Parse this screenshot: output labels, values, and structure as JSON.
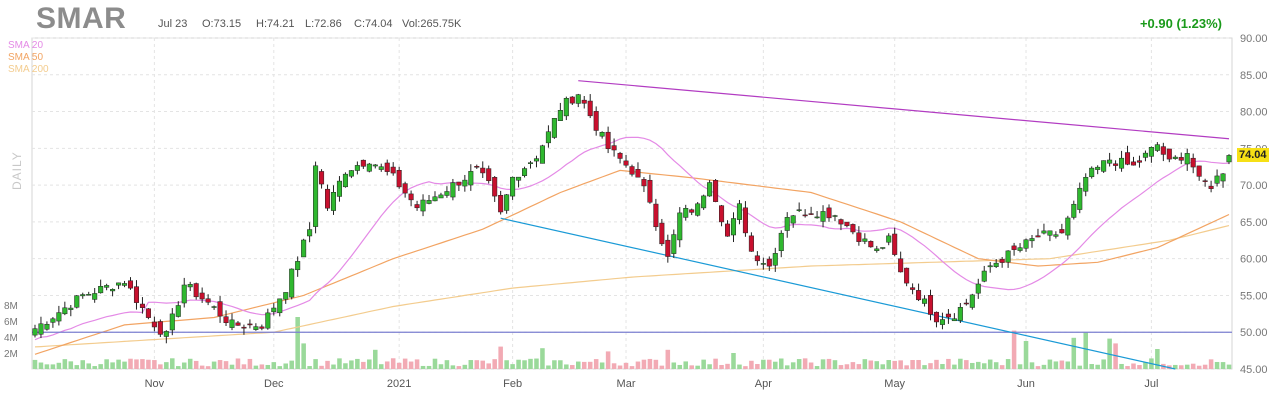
{
  "header": {
    "ticker": "SMAR",
    "date": "Jul 23",
    "open": "O:73.15",
    "high": "H:74.21",
    "low": "L:72.86",
    "close": "C:74.04",
    "volume": "Vol:265.75K",
    "change": "+0.90 (1.23%)",
    "period": "DAILY",
    "last_price": "74.04"
  },
  "colors": {
    "up": "#2fb82f",
    "down": "#c8102e",
    "sma20": "#e48ae6",
    "sma50": "#f2a463",
    "sma200": "#f3cc8e",
    "resistance": "#b23cc2",
    "support": "#1a9ad6",
    "hline": "#7b7fd1",
    "vol_up": "#9ad99a",
    "vol_down": "#f2aab4",
    "grid": "#e4e4e4"
  },
  "chart_data": {
    "type": "candlestick",
    "price_ylim": [
      45,
      90
    ],
    "price_ticks": [
      "90.00",
      "85.00",
      "80.00",
      "75.00",
      "70.00",
      "65.00",
      "60.00",
      "55.00",
      "50.00",
      "45.00"
    ],
    "volume_ticks": [
      "8M",
      "6M",
      "4M",
      "2M"
    ],
    "x_tick_labels": [
      "Nov",
      "Dec",
      "2021",
      "Feb",
      "Mar",
      "Apr",
      "May",
      "Jun",
      "Jul"
    ],
    "x_tick_bars": [
      20,
      40,
      61,
      80,
      99,
      122,
      144,
      166,
      187
    ],
    "legend": [
      "SMA 20",
      "SMA 50",
      "SMA 200"
    ],
    "hline": 50.0,
    "resistance_line": {
      "from": [
        91,
        84.2
      ],
      "to": [
        200,
        76.3
      ]
    },
    "support_line": {
      "from": [
        78,
        65.5
      ],
      "to": [
        191,
        45.0
      ]
    },
    "anchor_closes": [
      [
        0,
        50.5
      ],
      [
        8,
        55.0
      ],
      [
        15,
        57.0
      ],
      [
        19,
        52.0
      ],
      [
        22,
        49.5
      ],
      [
        25,
        56.5
      ],
      [
        29,
        54.0
      ],
      [
        33,
        51.0
      ],
      [
        38,
        51.0
      ],
      [
        42,
        56.0
      ],
      [
        46,
        64.0
      ],
      [
        47,
        73.0
      ],
      [
        49,
        67.0
      ],
      [
        52,
        72.0
      ],
      [
        56,
        73.5
      ],
      [
        60,
        71.0
      ],
      [
        64,
        67.0
      ],
      [
        68,
        69.0
      ],
      [
        74,
        72.0
      ],
      [
        76,
        70.0
      ],
      [
        78,
        66.0
      ],
      [
        80,
        71.0
      ],
      [
        84,
        74.0
      ],
      [
        86,
        77.0
      ],
      [
        88,
        80.5
      ],
      [
        91,
        82.5
      ],
      [
        94,
        78.0
      ],
      [
        96,
        75.0
      ],
      [
        100,
        72.0
      ],
      [
        103,
        68.0
      ],
      [
        104,
        65.0
      ],
      [
        106,
        60.0
      ],
      [
        108,
        66.0
      ],
      [
        111,
        67.0
      ],
      [
        113,
        71.0
      ],
      [
        116,
        63.0
      ],
      [
        118,
        67.0
      ],
      [
        120,
        61.0
      ],
      [
        123,
        59.0
      ],
      [
        126,
        66.0
      ],
      [
        130,
        66.5
      ],
      [
        134,
        66.0
      ],
      [
        138,
        63.0
      ],
      [
        141,
        61.0
      ],
      [
        143,
        62.5
      ],
      [
        145,
        58.0
      ],
      [
        148,
        55.0
      ],
      [
        151,
        52.0
      ],
      [
        154,
        52.5
      ],
      [
        156,
        54.0
      ],
      [
        160,
        59.0
      ],
      [
        163,
        60.5
      ],
      [
        166,
        62.0
      ],
      [
        168,
        63.0
      ],
      [
        172,
        63.5
      ],
      [
        174,
        67.0
      ],
      [
        176,
        71.0
      ],
      [
        180,
        73.5
      ],
      [
        184,
        72.5
      ],
      [
        186,
        74.0
      ],
      [
        188,
        75.5
      ],
      [
        190,
        73.0
      ],
      [
        193,
        74.5
      ],
      [
        195,
        70.5
      ],
      [
        197,
        70.0
      ],
      [
        199,
        72.0
      ],
      [
        200,
        74.04
      ]
    ],
    "volume_spikes": [
      [
        44,
        6.5
      ],
      [
        45,
        3.2
      ],
      [
        57,
        2.4
      ],
      [
        78,
        2.8
      ],
      [
        85,
        2.6
      ],
      [
        96,
        2.2
      ],
      [
        106,
        2.4
      ],
      [
        117,
        2.0
      ],
      [
        164,
        4.8
      ],
      [
        166,
        3.5
      ],
      [
        174,
        3.9
      ],
      [
        176,
        4.6
      ],
      [
        180,
        3.8
      ],
      [
        181,
        3.2
      ],
      [
        188,
        2.5
      ]
    ],
    "sma200_anchors": [
      [
        0,
        48.0
      ],
      [
        40,
        50.0
      ],
      [
        60,
        53.5
      ],
      [
        80,
        56.0
      ],
      [
        100,
        57.5
      ],
      [
        130,
        59.0
      ],
      [
        150,
        59.5
      ],
      [
        170,
        60.0
      ],
      [
        190,
        62.5
      ],
      [
        200,
        64.5
      ]
    ],
    "sma50_anchors": [
      [
        0,
        47.0
      ],
      [
        15,
        51.0
      ],
      [
        30,
        52.0
      ],
      [
        45,
        55.0
      ],
      [
        60,
        60.0
      ],
      [
        75,
        64.0
      ],
      [
        88,
        69.0
      ],
      [
        98,
        72.0
      ],
      [
        110,
        71.0
      ],
      [
        130,
        69.0
      ],
      [
        145,
        65.0
      ],
      [
        158,
        60.0
      ],
      [
        168,
        59.0
      ],
      [
        178,
        59.5
      ],
      [
        188,
        61.5
      ],
      [
        200,
        66.0
      ]
    ]
  }
}
